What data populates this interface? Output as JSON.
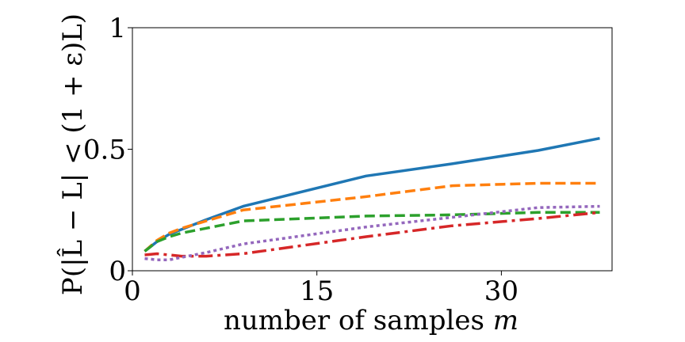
{
  "chart_data": {
    "type": "line",
    "title": "",
    "xlabel": "number of samples",
    "xlabel_var": "m",
    "ylabel": "P(|L̂ − L| < (1 + ε)L)",
    "xlim": [
      0,
      39
    ],
    "ylim": [
      0,
      1
    ],
    "xticks": [
      0,
      15,
      30
    ],
    "xtick_labels": [
      "0",
      "15",
      "30"
    ],
    "yticks": [
      0,
      0.5,
      1
    ],
    "ytick_labels": [
      "0",
      "0.5",
      "1"
    ],
    "x": [
      1,
      2,
      3,
      4,
      6,
      9,
      19,
      26,
      33,
      38
    ],
    "series": [
      {
        "name": "series-1",
        "color": "#1f77b4",
        "dash": "solid",
        "values": [
          0.08,
          0.12,
          0.15,
          0.17,
          0.21,
          0.265,
          0.39,
          0.44,
          0.495,
          0.545
        ]
      },
      {
        "name": "series-2",
        "color": "#ff7f0e",
        "dash": "dashed",
        "values": [
          0.08,
          0.125,
          0.155,
          0.175,
          0.205,
          0.25,
          0.305,
          0.35,
          0.36,
          0.36
        ]
      },
      {
        "name": "series-3",
        "color": "#2ca02c",
        "dash": "dashed",
        "values": [
          0.08,
          0.12,
          0.14,
          0.155,
          0.175,
          0.205,
          0.225,
          0.23,
          0.24,
          0.24
        ]
      },
      {
        "name": "series-4",
        "color": "#d62728",
        "dash": "dashdot",
        "values": [
          0.065,
          0.07,
          0.065,
          0.06,
          0.06,
          0.07,
          0.14,
          0.185,
          0.215,
          0.24
        ]
      },
      {
        "name": "series-5",
        "color": "#9467bd",
        "dash": "dotted",
        "values": [
          0.05,
          0.045,
          0.045,
          0.055,
          0.075,
          0.11,
          0.18,
          0.22,
          0.26,
          0.265
        ]
      }
    ]
  }
}
